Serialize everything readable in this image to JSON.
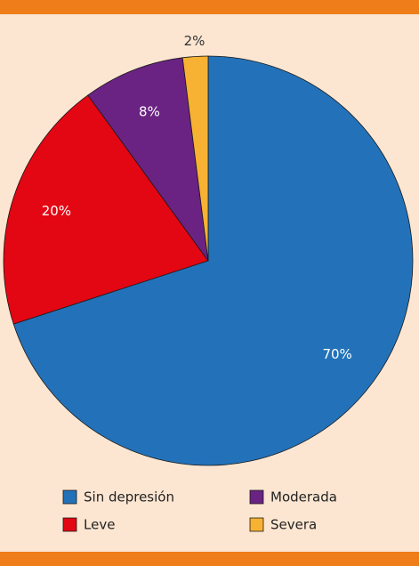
{
  "chart_data": {
    "type": "pie",
    "categories": [
      "Sin depresión",
      "Leve",
      "Moderada",
      "Severa"
    ],
    "values": [
      70,
      20,
      8,
      2
    ],
    "value_labels": [
      "70%",
      "20%",
      "8%",
      "2%"
    ],
    "colors": [
      "#2372b9",
      "#e30613",
      "#6a2382",
      "#f7b233"
    ],
    "legend": "bottom"
  }
}
